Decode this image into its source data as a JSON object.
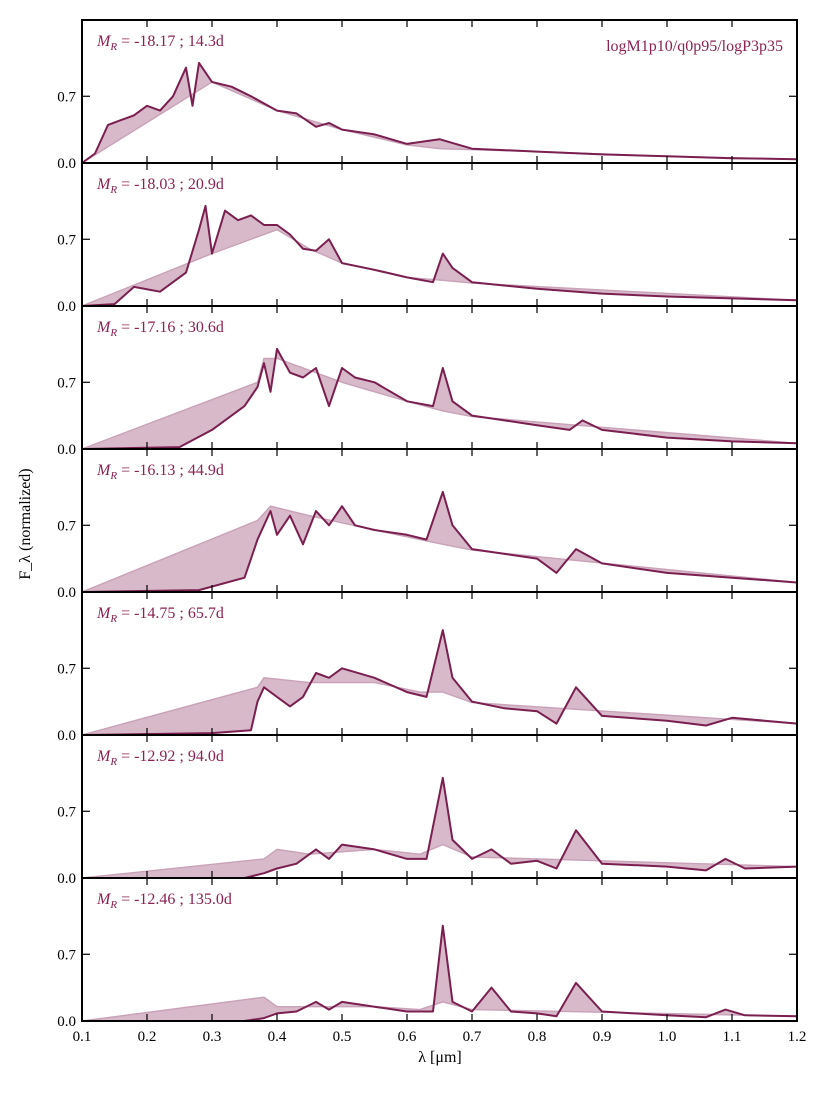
{
  "chart_data": {
    "type": "line",
    "xlabel": "λ [μm]",
    "ylabel": "F_λ (normalized)",
    "model_label": "logM1p10/q0p95/logP3p35",
    "xlim": [
      0.1,
      1.2
    ],
    "ylim": [
      0.0,
      1.5
    ],
    "x_ticks": [
      "0.1",
      "0.2",
      "0.3",
      "0.4",
      "0.5",
      "0.6",
      "0.7",
      "0.8",
      "0.9",
      "1.0",
      "1.1",
      "1.2"
    ],
    "y_ticks": [
      "0.0",
      "0.7"
    ],
    "colors": {
      "line": "#7a1f4f",
      "fill": "#c9a2b8",
      "label": "#8a2252"
    },
    "panels": [
      {
        "label": "M_R = -18.17 ; 14.3d",
        "line": [
          [
            0.1,
            0.0
          ],
          [
            0.12,
            0.1
          ],
          [
            0.14,
            0.4
          ],
          [
            0.16,
            0.45
          ],
          [
            0.18,
            0.5
          ],
          [
            0.2,
            0.6
          ],
          [
            0.22,
            0.55
          ],
          [
            0.24,
            0.7
          ],
          [
            0.26,
            1.0
          ],
          [
            0.27,
            0.6
          ],
          [
            0.28,
            1.05
          ],
          [
            0.29,
            0.95
          ],
          [
            0.3,
            0.85
          ],
          [
            0.33,
            0.8
          ],
          [
            0.36,
            0.7
          ],
          [
            0.4,
            0.55
          ],
          [
            0.43,
            0.52
          ],
          [
            0.46,
            0.38
          ],
          [
            0.48,
            0.42
          ],
          [
            0.5,
            0.35
          ],
          [
            0.55,
            0.3
          ],
          [
            0.6,
            0.2
          ],
          [
            0.65,
            0.25
          ],
          [
            0.7,
            0.15
          ],
          [
            0.8,
            0.12
          ],
          [
            0.9,
            0.09
          ],
          [
            1.0,
            0.07
          ],
          [
            1.1,
            0.05
          ],
          [
            1.2,
            0.04
          ]
        ],
        "continuum": [
          [
            0.1,
            0.0
          ],
          [
            0.3,
            0.85
          ],
          [
            0.4,
            0.55
          ],
          [
            0.45,
            0.45
          ],
          [
            0.5,
            0.35
          ],
          [
            0.6,
            0.19
          ],
          [
            0.65,
            0.15
          ],
          [
            0.7,
            0.14
          ],
          [
            0.8,
            0.12
          ],
          [
            1.0,
            0.07
          ],
          [
            1.2,
            0.04
          ]
        ]
      },
      {
        "label": "M_R = -18.03 ; 20.9d",
        "line": [
          [
            0.1,
            0.0
          ],
          [
            0.15,
            0.02
          ],
          [
            0.18,
            0.2
          ],
          [
            0.22,
            0.15
          ],
          [
            0.26,
            0.35
          ],
          [
            0.28,
            0.8
          ],
          [
            0.29,
            1.05
          ],
          [
            0.3,
            0.55
          ],
          [
            0.32,
            1.0
          ],
          [
            0.34,
            0.9
          ],
          [
            0.36,
            0.95
          ],
          [
            0.38,
            0.85
          ],
          [
            0.4,
            0.85
          ],
          [
            0.42,
            0.75
          ],
          [
            0.44,
            0.6
          ],
          [
            0.46,
            0.58
          ],
          [
            0.48,
            0.7
          ],
          [
            0.5,
            0.45
          ],
          [
            0.55,
            0.38
          ],
          [
            0.6,
            0.3
          ],
          [
            0.64,
            0.25
          ],
          [
            0.655,
            0.55
          ],
          [
            0.67,
            0.4
          ],
          [
            0.7,
            0.25
          ],
          [
            0.8,
            0.18
          ],
          [
            0.9,
            0.13
          ],
          [
            1.0,
            0.1
          ],
          [
            1.1,
            0.08
          ],
          [
            1.2,
            0.06
          ]
        ],
        "continuum": [
          [
            0.1,
            0.0
          ],
          [
            0.3,
            0.55
          ],
          [
            0.4,
            0.8
          ],
          [
            0.45,
            0.6
          ],
          [
            0.5,
            0.45
          ],
          [
            0.6,
            0.3
          ],
          [
            0.655,
            0.27
          ],
          [
            0.7,
            0.24
          ],
          [
            1.2,
            0.06
          ]
        ]
      },
      {
        "label": "M_R = -17.16 ; 30.6d",
        "line": [
          [
            0.1,
            0.0
          ],
          [
            0.25,
            0.02
          ],
          [
            0.3,
            0.2
          ],
          [
            0.35,
            0.45
          ],
          [
            0.37,
            0.65
          ],
          [
            0.38,
            0.9
          ],
          [
            0.39,
            0.6
          ],
          [
            0.4,
            1.05
          ],
          [
            0.42,
            0.8
          ],
          [
            0.44,
            0.75
          ],
          [
            0.46,
            0.85
          ],
          [
            0.48,
            0.45
          ],
          [
            0.5,
            0.85
          ],
          [
            0.52,
            0.75
          ],
          [
            0.55,
            0.7
          ],
          [
            0.6,
            0.5
          ],
          [
            0.64,
            0.45
          ],
          [
            0.655,
            0.85
          ],
          [
            0.67,
            0.5
          ],
          [
            0.7,
            0.35
          ],
          [
            0.75,
            0.3
          ],
          [
            0.8,
            0.25
          ],
          [
            0.85,
            0.2
          ],
          [
            0.87,
            0.3
          ],
          [
            0.9,
            0.2
          ],
          [
            1.0,
            0.12
          ],
          [
            1.1,
            0.08
          ],
          [
            1.2,
            0.06
          ]
        ],
        "continuum": [
          [
            0.1,
            0.0
          ],
          [
            0.37,
            0.7
          ],
          [
            0.38,
            0.95
          ],
          [
            0.4,
            0.95
          ],
          [
            0.5,
            0.7
          ],
          [
            0.6,
            0.5
          ],
          [
            0.655,
            0.4
          ],
          [
            0.7,
            0.34
          ],
          [
            1.2,
            0.06
          ]
        ]
      },
      {
        "label": "M_R = -16.13 ; 44.9d",
        "line": [
          [
            0.1,
            0.0
          ],
          [
            0.28,
            0.02
          ],
          [
            0.35,
            0.15
          ],
          [
            0.37,
            0.55
          ],
          [
            0.39,
            0.85
          ],
          [
            0.4,
            0.6
          ],
          [
            0.42,
            0.8
          ],
          [
            0.44,
            0.5
          ],
          [
            0.46,
            0.85
          ],
          [
            0.48,
            0.7
          ],
          [
            0.5,
            0.9
          ],
          [
            0.52,
            0.7
          ],
          [
            0.55,
            0.65
          ],
          [
            0.6,
            0.6
          ],
          [
            0.63,
            0.55
          ],
          [
            0.655,
            1.05
          ],
          [
            0.67,
            0.7
          ],
          [
            0.7,
            0.45
          ],
          [
            0.75,
            0.4
          ],
          [
            0.8,
            0.35
          ],
          [
            0.83,
            0.2
          ],
          [
            0.86,
            0.45
          ],
          [
            0.9,
            0.3
          ],
          [
            1.0,
            0.2
          ],
          [
            1.1,
            0.15
          ],
          [
            1.2,
            0.1
          ]
        ],
        "continuum": [
          [
            0.1,
            0.0
          ],
          [
            0.37,
            0.75
          ],
          [
            0.39,
            0.9
          ],
          [
            0.45,
            0.8
          ],
          [
            0.55,
            0.65
          ],
          [
            0.62,
            0.55
          ],
          [
            0.655,
            0.5
          ],
          [
            0.7,
            0.44
          ],
          [
            1.2,
            0.1
          ]
        ]
      },
      {
        "label": "M_R = -14.75 ; 65.7d",
        "line": [
          [
            0.1,
            0.0
          ],
          [
            0.3,
            0.02
          ],
          [
            0.36,
            0.05
          ],
          [
            0.37,
            0.35
          ],
          [
            0.38,
            0.5
          ],
          [
            0.4,
            0.4
          ],
          [
            0.42,
            0.3
          ],
          [
            0.44,
            0.4
          ],
          [
            0.46,
            0.65
          ],
          [
            0.48,
            0.6
          ],
          [
            0.5,
            0.7
          ],
          [
            0.55,
            0.6
          ],
          [
            0.6,
            0.45
          ],
          [
            0.63,
            0.4
          ],
          [
            0.655,
            1.1
          ],
          [
            0.67,
            0.6
          ],
          [
            0.7,
            0.35
          ],
          [
            0.75,
            0.28
          ],
          [
            0.8,
            0.25
          ],
          [
            0.83,
            0.12
          ],
          [
            0.86,
            0.5
          ],
          [
            0.9,
            0.2
          ],
          [
            1.0,
            0.15
          ],
          [
            1.06,
            0.1
          ],
          [
            1.1,
            0.18
          ],
          [
            1.2,
            0.12
          ]
        ],
        "continuum": [
          [
            0.1,
            0.0
          ],
          [
            0.37,
            0.5
          ],
          [
            0.38,
            0.6
          ],
          [
            0.45,
            0.55
          ],
          [
            0.55,
            0.55
          ],
          [
            0.62,
            0.45
          ],
          [
            0.655,
            0.45
          ],
          [
            0.7,
            0.34
          ],
          [
            1.2,
            0.12
          ]
        ]
      },
      {
        "label": "M_R = -12.92 ; 94.0d",
        "line": [
          [
            0.1,
            0.0
          ],
          [
            0.35,
            0.0
          ],
          [
            0.38,
            0.05
          ],
          [
            0.4,
            0.1
          ],
          [
            0.43,
            0.15
          ],
          [
            0.46,
            0.3
          ],
          [
            0.48,
            0.2
          ],
          [
            0.5,
            0.35
          ],
          [
            0.55,
            0.3
          ],
          [
            0.6,
            0.2
          ],
          [
            0.63,
            0.2
          ],
          [
            0.655,
            1.05
          ],
          [
            0.67,
            0.4
          ],
          [
            0.7,
            0.2
          ],
          [
            0.73,
            0.3
          ],
          [
            0.76,
            0.15
          ],
          [
            0.8,
            0.18
          ],
          [
            0.83,
            0.1
          ],
          [
            0.86,
            0.5
          ],
          [
            0.9,
            0.15
          ],
          [
            1.0,
            0.12
          ],
          [
            1.06,
            0.08
          ],
          [
            1.09,
            0.2
          ],
          [
            1.12,
            0.1
          ],
          [
            1.2,
            0.12
          ]
        ],
        "continuum": [
          [
            0.1,
            0.0
          ],
          [
            0.38,
            0.2
          ],
          [
            0.4,
            0.3
          ],
          [
            0.45,
            0.25
          ],
          [
            0.55,
            0.3
          ],
          [
            0.62,
            0.25
          ],
          [
            0.655,
            0.35
          ],
          [
            0.7,
            0.22
          ],
          [
            1.2,
            0.12
          ]
        ]
      },
      {
        "label": "M_R = -12.46 ; 135.0d",
        "line": [
          [
            0.1,
            0.0
          ],
          [
            0.35,
            0.0
          ],
          [
            0.38,
            0.03
          ],
          [
            0.4,
            0.08
          ],
          [
            0.43,
            0.1
          ],
          [
            0.46,
            0.2
          ],
          [
            0.48,
            0.12
          ],
          [
            0.5,
            0.2
          ],
          [
            0.55,
            0.15
          ],
          [
            0.6,
            0.1
          ],
          [
            0.64,
            0.1
          ],
          [
            0.655,
            1.0
          ],
          [
            0.67,
            0.2
          ],
          [
            0.7,
            0.1
          ],
          [
            0.73,
            0.35
          ],
          [
            0.76,
            0.1
          ],
          [
            0.8,
            0.08
          ],
          [
            0.83,
            0.05
          ],
          [
            0.86,
            0.4
          ],
          [
            0.9,
            0.1
          ],
          [
            1.0,
            0.06
          ],
          [
            1.06,
            0.04
          ],
          [
            1.09,
            0.12
          ],
          [
            1.12,
            0.06
          ],
          [
            1.2,
            0.05
          ]
        ],
        "continuum": [
          [
            0.1,
            0.0
          ],
          [
            0.38,
            0.25
          ],
          [
            0.4,
            0.15
          ],
          [
            0.45,
            0.15
          ],
          [
            0.55,
            0.15
          ],
          [
            0.62,
            0.12
          ],
          [
            0.655,
            0.2
          ],
          [
            0.7,
            0.12
          ],
          [
            1.2,
            0.05
          ]
        ]
      }
    ]
  }
}
